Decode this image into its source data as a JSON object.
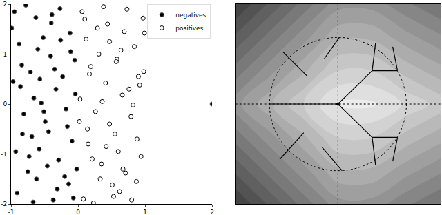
{
  "chart_data": [
    {
      "type": "scatter",
      "xlim": [
        -1,
        2
      ],
      "ylim": [
        -2,
        2
      ],
      "xticks": [
        -1,
        0,
        1,
        2
      ],
      "yticks": [
        -2,
        -1,
        0,
        1,
        2
      ],
      "legend": "upper right",
      "series": [
        {
          "name": "negatives",
          "color": "#000000",
          "marker": "filled",
          "x": [
            -0.95,
            -0.12,
            -0.63,
            -0.41,
            -0.88,
            -0.27,
            -0.71,
            -0.05,
            -0.52,
            -0.33,
            -0.97,
            -0.18,
            -0.66,
            -0.44,
            -0.81,
            -0.09,
            -0.58,
            -0.29,
            -0.75,
            -0.14,
            -0.91,
            -0.37,
            -0.62,
            -0.02,
            -0.49,
            -0.84,
            -0.23,
            -0.69,
            -0.4,
            -0.11,
            -0.78,
            -0.55,
            -0.31,
            -0.93,
            -0.16,
            -0.6,
            -0.46,
            -0.86,
            -0.07,
            -0.35,
            -0.73,
            -0.26,
            -0.99,
            -0.51,
            -0.2,
            -0.67,
            -0.39,
            -0.83,
            -0.04,
            -0.57,
            2
          ],
          "y": [
            1.85,
            1.42,
            1.73,
            0.96,
            1.2,
            1.91,
            0.64,
            0.88,
            1.33,
            0.3,
            0.45,
            -0.1,
            0.12,
            -0.55,
            -0.2,
            -0.74,
            -0.9,
            -1.12,
            -1.35,
            -1.6,
            -1.78,
            -1.92,
            -1.5,
            -1.3,
            -0.35,
            0.78,
            0.55,
            -0.65,
            1.62,
            1.05,
            1.98,
            0.02,
            -1.7,
            -0.95,
            -0.45,
            1.1,
            -1.24,
            0.35,
            -1.88,
            0.7,
            -1.05,
            1.28,
            1.52,
            -0.15,
            -1.45,
            -1.96,
            1.79,
            -0.6,
            0.2,
            0.5,
            0
          ]
        },
        {
          "name": "positives",
          "color": "#000000",
          "marker": "open",
          "x": [
            0.08,
            0.87,
            0.35,
            0.62,
            0.15,
            0.94,
            0.47,
            0.71,
            0.26,
            0.55,
            0.03,
            0.79,
            0.41,
            0.66,
            0.19,
            0.9,
            0.31,
            0.58,
            0.12,
            0.84,
            0.44,
            0.69,
            0.06,
            0.97,
            0.38,
            0.51,
            0.23,
            0.76,
            0.6,
            0.14,
            0.82,
            0.29,
            0.53,
            0.98,
            0.1,
            0.67,
            0.36,
            0.88,
            0.21,
            0.47,
            0.73,
            0.02,
            0.57,
            0.92,
            0.33,
            0.64,
            0.17,
            0.8,
            0.42,
            0.99
          ],
          "y": [
            -1.9,
            -1.55,
            -1.2,
            -1.75,
            -0.8,
            -1.05,
            -0.4,
            -1.38,
            -0.15,
            -0.6,
            0.1,
            -0.25,
            0.42,
            0.18,
            0.75,
            0.55,
            1.0,
            0.9,
            1.3,
            1.15,
            1.6,
            1.45,
            1.85,
            1.72,
            1.95,
            -1.62,
            -1.98,
            0.3,
            -0.95,
            -0.5,
            -0.02,
            1.52,
            -1.85,
            0.65,
            1.7,
            -1.3,
            0.05,
            -0.7,
            -1.1,
            1.25,
            1.9,
            -0.35,
            0.85,
            0.38,
            -1.5,
            1.08,
            0.6,
            -1.92,
            -0.85,
            1.42
          ]
        }
      ]
    },
    {
      "type": "contour",
      "xlim": [
        -1.5,
        1.5
      ],
      "ylim": [
        -1.5,
        1.5
      ],
      "tick_labels": false,
      "x": [
        -1.5,
        -1,
        -0.5,
        0,
        0.5,
        1,
        1.5
      ],
      "y": [
        -1.5,
        -1,
        -0.5,
        0,
        0.5,
        1,
        1.5
      ],
      "z": [
        [
          0.25,
          0.36,
          0.47,
          0.58,
          0.58,
          0.51,
          0.45
        ],
        [
          0.36,
          0.47,
          0.58,
          0.69,
          0.69,
          0.62,
          0.56
        ],
        [
          0.47,
          0.58,
          0.69,
          0.8,
          0.8,
          0.73,
          0.67
        ],
        [
          0.58,
          0.69,
          0.8,
          0.91,
          0.91,
          0.84,
          0.78
        ],
        [
          0.47,
          0.58,
          0.69,
          0.8,
          0.8,
          0.73,
          0.67
        ],
        [
          0.36,
          0.47,
          0.58,
          0.69,
          0.69,
          0.62,
          0.56
        ],
        [
          0.25,
          0.36,
          0.47,
          0.58,
          0.58,
          0.51,
          0.45
        ]
      ],
      "zlim": [
        0,
        1
      ],
      "circle": {
        "center": [
          0,
          0
        ],
        "radius": 1
      },
      "reference_lines": {
        "x": 0,
        "y": 0
      },
      "segments": [
        [
          [
            -1,
            0
          ],
          [
            0,
            0
          ]
        ],
        [
          [
            0,
            0
          ],
          [
            0.5,
            0.5
          ]
        ],
        [
          [
            0,
            0
          ],
          [
            0.5,
            -0.5
          ]
        ],
        [
          [
            0.5,
            0.5
          ],
          [
            0.55,
            0.92
          ]
        ],
        [
          [
            0.5,
            0.5
          ],
          [
            0.87,
            0.5
          ]
        ],
        [
          [
            0.5,
            -0.5
          ],
          [
            0.55,
            -0.92
          ]
        ],
        [
          [
            0.5,
            -0.5
          ],
          [
            0.87,
            -0.5
          ]
        ],
        [
          [
            -0.45,
            0.42
          ],
          [
            -0.8,
            0.78
          ]
        ],
        [
          [
            -0.2,
            0.68
          ],
          [
            0.02,
            1.0
          ]
        ],
        [
          [
            -0.5,
            -0.43
          ],
          [
            -0.85,
            -0.83
          ]
        ],
        [
          [
            -0.23,
            -0.65
          ],
          [
            0.06,
            -1.0
          ]
        ],
        [
          [
            0.8,
            0.86
          ],
          [
            0.87,
            0.5
          ]
        ],
        [
          [
            0.8,
            -0.86
          ],
          [
            0.87,
            -0.5
          ]
        ]
      ]
    }
  ]
}
